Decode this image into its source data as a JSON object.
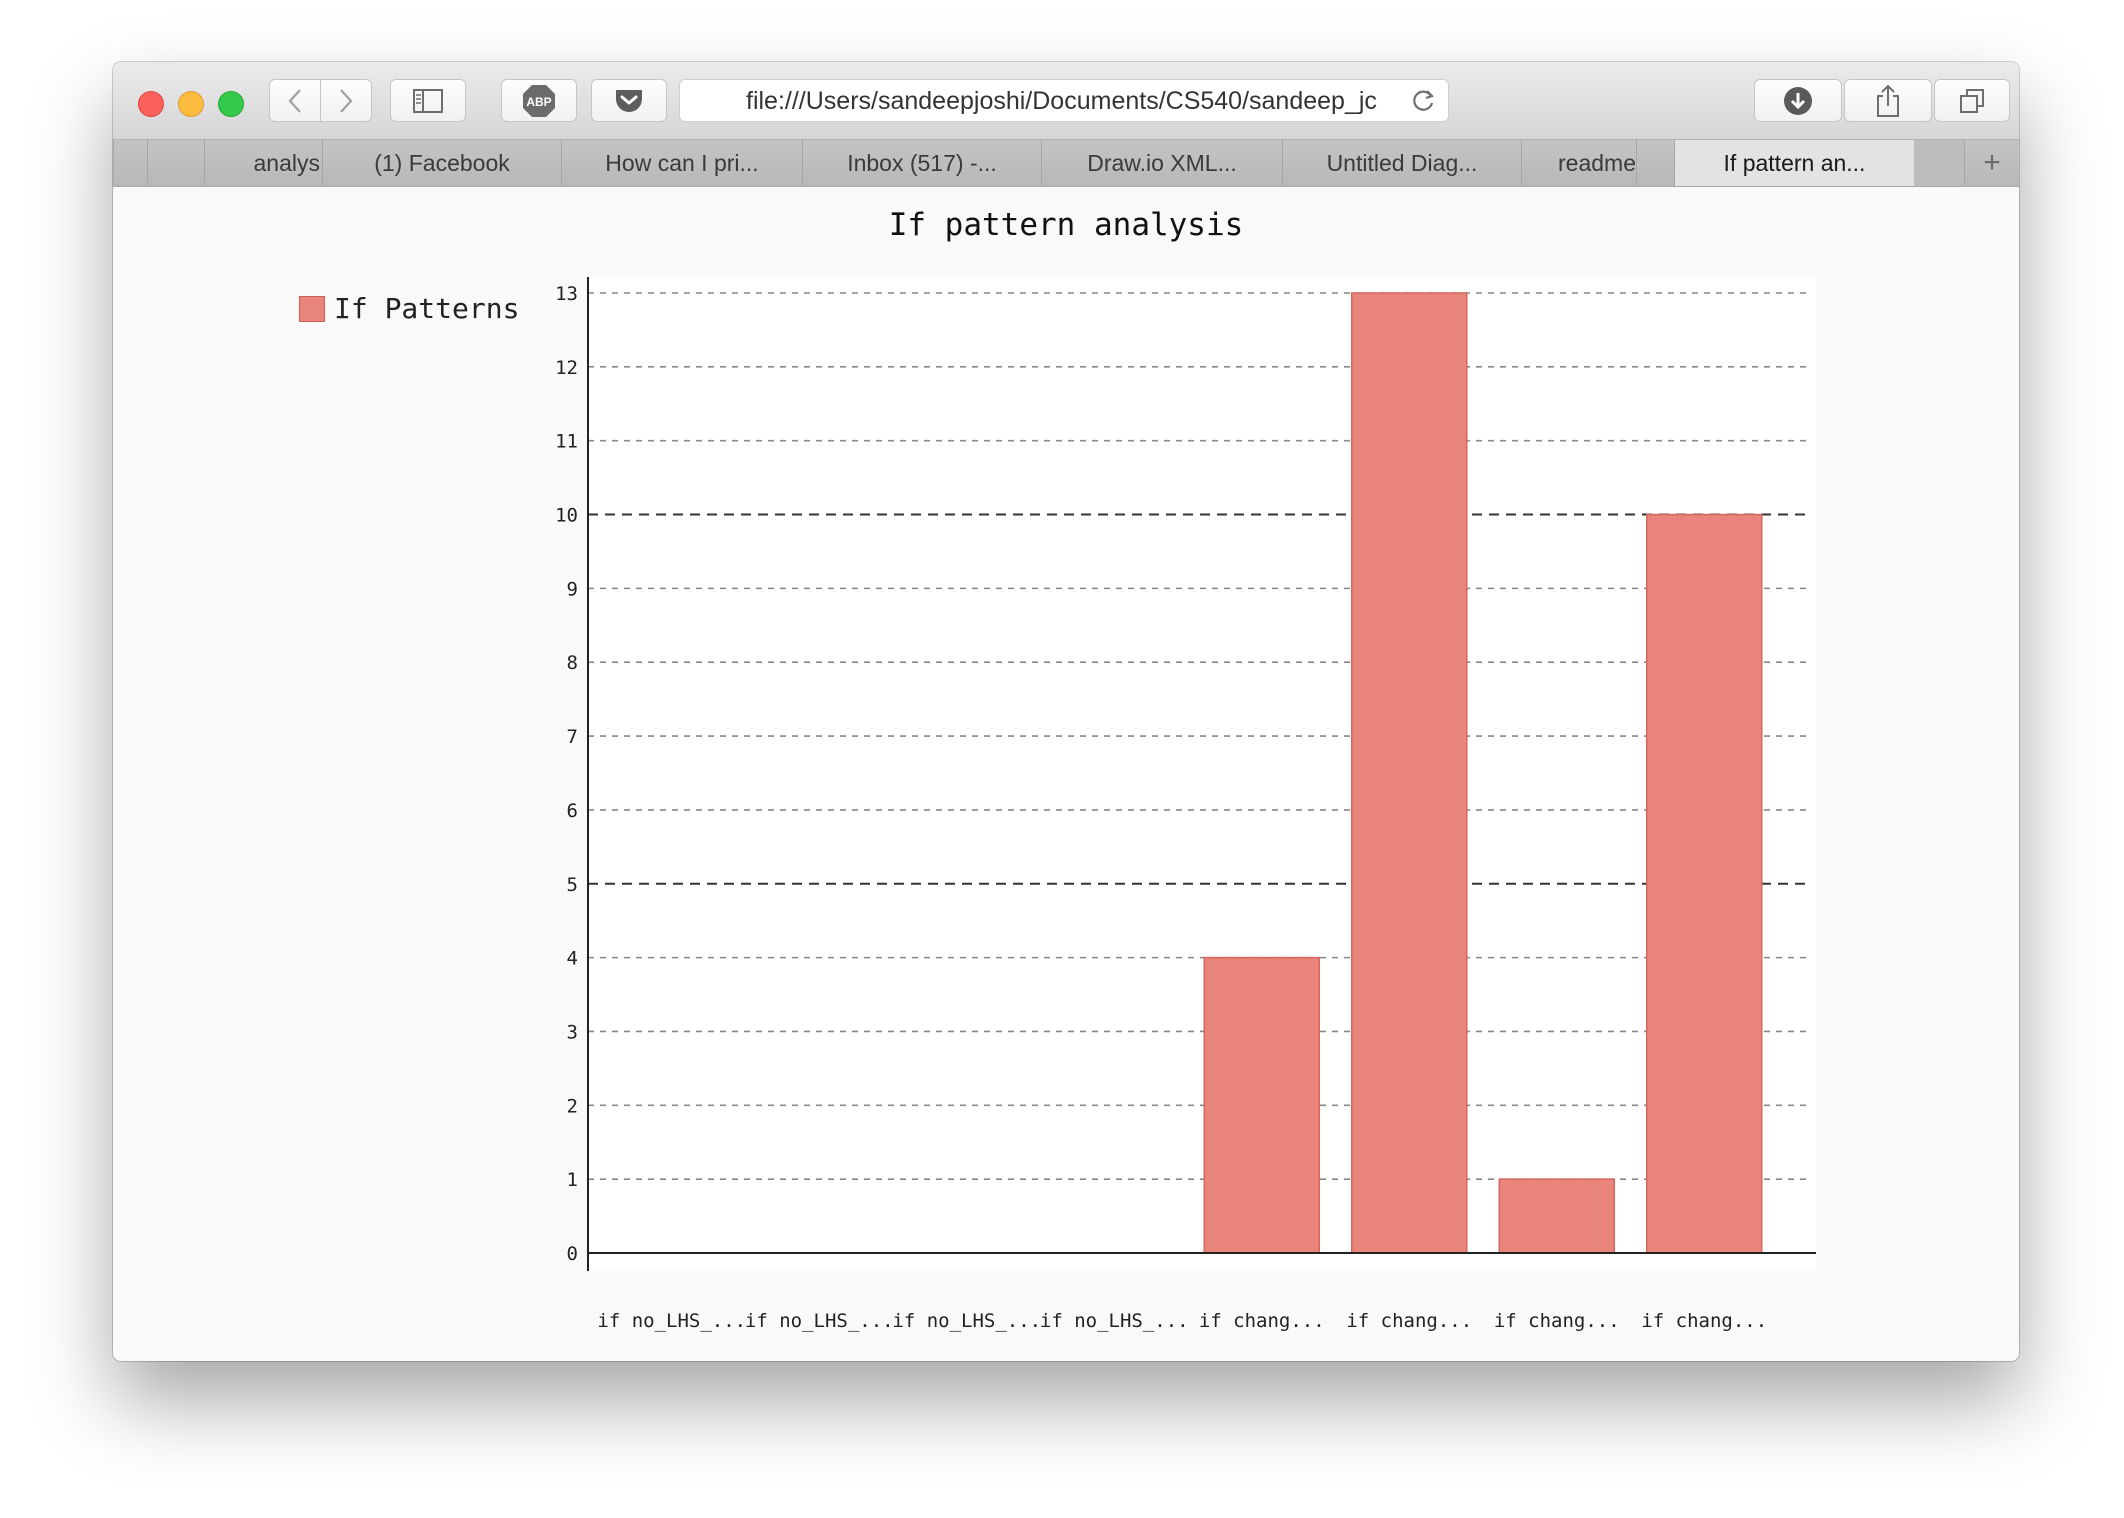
{
  "browser": {
    "url": "file:///Users/sandeepjoshi/Documents/CS540/sandeep_jc",
    "tabs": [
      {
        "label": ""
      },
      {
        "label": "analys"
      },
      {
        "label": "(1) Facebook"
      },
      {
        "label": "How can I pri..."
      },
      {
        "label": "Inbox (517) -..."
      },
      {
        "label": "Draw.io XML..."
      },
      {
        "label": "Untitled Diag..."
      },
      {
        "label": "readme"
      },
      {
        "label": ""
      },
      {
        "label": "If pattern an..."
      }
    ],
    "new_tab_label": "+",
    "adblock_label": "ABP"
  },
  "chart_data": {
    "type": "bar",
    "title": "If pattern analysis",
    "categories": [
      "if no_LHS_...",
      "if no_LHS_...",
      "if no_LHS_...",
      "if no_LHS_...",
      "if chang...",
      "if chang...",
      "if chang...",
      "if chang..."
    ],
    "series": [
      {
        "name": "If Patterns",
        "values": [
          0,
          0,
          0,
          0,
          4,
          13,
          1,
          10
        ],
        "color": "#e8847a"
      }
    ],
    "ylim": [
      0,
      13
    ],
    "yticks": [
      0,
      1,
      2,
      3,
      4,
      5,
      6,
      7,
      8,
      9,
      10,
      11,
      12,
      13
    ],
    "major_ticks": [
      5,
      10
    ],
    "grid": true,
    "legend_position": "left",
    "xlabel": "",
    "ylabel": ""
  }
}
